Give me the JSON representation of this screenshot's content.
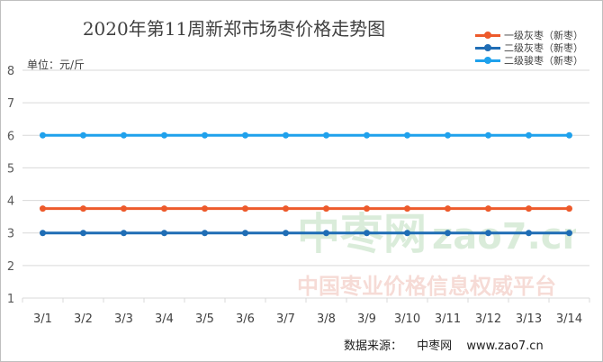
{
  "chart_data": {
    "type": "line",
    "title": "2020年第11周新郑市场枣价格走势图",
    "unit_label": "单位：元/斤",
    "categories": [
      "3/1",
      "3/2",
      "3/3",
      "3/4",
      "3/5",
      "3/6",
      "3/7",
      "3/8",
      "3/9",
      "3/10",
      "3/11",
      "3/12",
      "3/13",
      "3/14"
    ],
    "y_ticks": [
      "1",
      "2",
      "3",
      "4",
      "5",
      "6",
      "7",
      "8"
    ],
    "ylim": [
      1,
      8
    ],
    "grid": true,
    "legend_position": "top-right",
    "series": [
      {
        "name": "一级灰枣（新枣）",
        "color": "#ed5a2b",
        "values": [
          3.75,
          3.75,
          3.75,
          3.75,
          3.75,
          3.75,
          3.75,
          3.75,
          3.75,
          3.75,
          3.75,
          3.75,
          3.75,
          3.75
        ]
      },
      {
        "name": "二级灰枣（新枣）",
        "color": "#1f6db5",
        "values": [
          3,
          3,
          3,
          3,
          3,
          3,
          3,
          3,
          3,
          3,
          3,
          3,
          3,
          3
        ]
      },
      {
        "name": "二级骏枣（新枣）",
        "color": "#1fa1ec",
        "values": [
          6,
          6,
          6,
          6,
          6,
          6,
          6,
          6,
          6,
          6,
          6,
          6,
          6,
          6
        ]
      }
    ]
  },
  "source": {
    "label": "数据来源：",
    "name": "中枣网",
    "url": "www.zao7.cn"
  },
  "watermark": {
    "name": "中枣网",
    "domain": "zao7.cn",
    "slogan": "中国枣业价格信息权威平台"
  }
}
